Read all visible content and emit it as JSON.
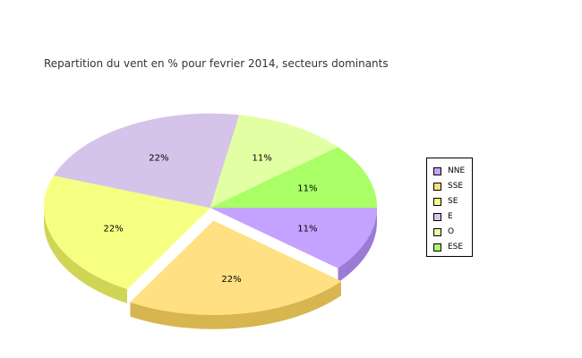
{
  "chart_data": {
    "type": "pie",
    "title": "Repartition du vent en % pour fevrier 2014, secteurs dominants",
    "slices": [
      {
        "label": "NNE",
        "value": 11,
        "display": "11%",
        "color": "#c3a3ff",
        "side": "#9b7bd6"
      },
      {
        "label": "SSE",
        "value": 22,
        "display": "22%",
        "color": "#ffe082",
        "side": "#d7b54f",
        "exploded": true
      },
      {
        "label": "SE",
        "value": 22,
        "display": "22%",
        "color": "#f7ff82",
        "side": "#cfd656"
      },
      {
        "label": "E",
        "value": 22,
        "display": "22%",
        "color": "#d5c3ea",
        "side": "#ab99c4"
      },
      {
        "label": "O",
        "value": 11,
        "display": "11%",
        "color": "#e3ffa3",
        "side": "#b8d67b"
      },
      {
        "label": "ESE",
        "value": 11,
        "display": "11%",
        "color": "#aaff66",
        "side": "#80d63b"
      }
    ],
    "legend_position": "right"
  }
}
